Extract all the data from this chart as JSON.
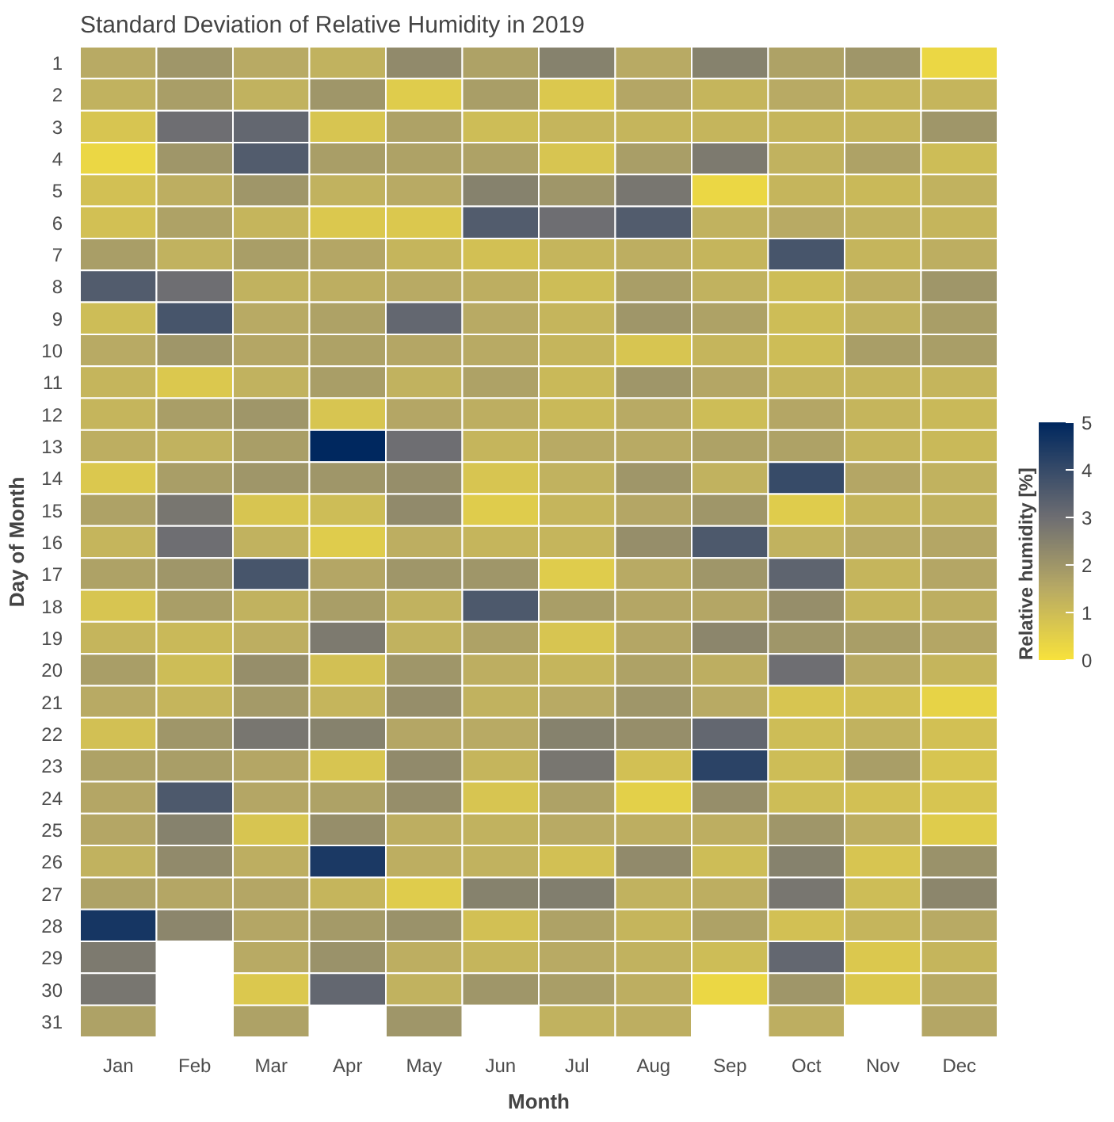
{
  "chart_data": {
    "type": "heatmap",
    "title": "Standard Deviation of Relative Humidity in 2019",
    "xlabel": "Month",
    "ylabel": "Day of Month",
    "clabel": "Relative humidity [%]",
    "categories": [
      "Jan",
      "Feb",
      "Mar",
      "Apr",
      "May",
      "Jun",
      "Jul",
      "Aug",
      "Sep",
      "Oct",
      "Nov",
      "Dec"
    ],
    "y_categories": [
      "1",
      "2",
      "3",
      "4",
      "5",
      "6",
      "7",
      "8",
      "9",
      "10",
      "11",
      "12",
      "13",
      "14",
      "15",
      "16",
      "17",
      "18",
      "19",
      "20",
      "21",
      "22",
      "23",
      "24",
      "25",
      "26",
      "27",
      "28",
      "29",
      "30",
      "31"
    ],
    "clim": [
      0,
      5
    ],
    "cticks": [
      0,
      1,
      2,
      3,
      4,
      5
    ],
    "grid": false,
    "cells": [
      [
        1.5,
        2,
        1.5,
        1.3,
        2.3,
        1.7,
        2.5,
        1.5,
        2.5,
        1.7,
        2,
        0.3
      ],
      [
        1.3,
        1.8,
        1.3,
        2,
        0.6,
        1.8,
        0.7,
        1.6,
        1.2,
        1.5,
        1.2,
        1.2
      ],
      [
        0.8,
        3,
        3.2,
        0.8,
        1.7,
        1,
        1.2,
        1.2,
        1.2,
        1.2,
        1.2,
        2
      ],
      [
        0.3,
        2,
        3.5,
        1.8,
        1.7,
        1.7,
        0.8,
        1.8,
        2.7,
        1.3,
        1.7,
        1
      ],
      [
        0.9,
        1.4,
        2,
        1.3,
        1.5,
        2.5,
        2,
        2.8,
        0.3,
        1.2,
        1.1,
        1.3
      ],
      [
        0.9,
        1.7,
        1.2,
        0.7,
        0.7,
        3.5,
        3,
        3.5,
        1.3,
        1.5,
        1.3,
        1.2
      ],
      [
        1.8,
        1.3,
        1.8,
        1.6,
        1.2,
        0.9,
        1.2,
        1.4,
        1.2,
        3.7,
        1.2,
        1.4
      ],
      [
        3.5,
        3,
        1.3,
        1.4,
        1.5,
        1.4,
        1,
        1.8,
        1.3,
        1,
        1.4,
        2
      ],
      [
        1,
        3.7,
        1.5,
        1.7,
        3.2,
        1.5,
        1.2,
        2,
        1.7,
        1,
        1.3,
        1.8
      ],
      [
        1.5,
        2,
        1.6,
        1.7,
        1.6,
        1.5,
        1.2,
        0.8,
        1.2,
        1,
        1.8,
        1.8
      ],
      [
        1.2,
        0.7,
        1.3,
        1.8,
        1.3,
        1.7,
        1.1,
        2,
        1.6,
        1.2,
        1.2,
        1.2
      ],
      [
        1.2,
        1.8,
        2,
        0.8,
        1.6,
        1.4,
        1.1,
        1.5,
        1,
        1.6,
        1.2,
        1.1
      ],
      [
        1.4,
        1.3,
        1.8,
        5,
        3,
        1.2,
        1.5,
        1.5,
        1.7,
        1.7,
        1.2,
        1.1
      ],
      [
        0.7,
        1.8,
        2,
        2,
        2.2,
        0.8,
        1.3,
        2,
        1.3,
        4,
        1.6,
        1.3
      ],
      [
        1.7,
        2.8,
        0.8,
        1,
        2.3,
        0.6,
        1.2,
        1.6,
        2,
        0.6,
        1.2,
        1.3
      ],
      [
        1.2,
        3,
        1.3,
        0.6,
        1.4,
        1.2,
        1.2,
        2.2,
        3.6,
        1.3,
        1.5,
        1.6
      ],
      [
        1.7,
        2,
        3.7,
        1.6,
        2,
        2,
        0.6,
        1.5,
        2,
        3.3,
        1.2,
        1.6
      ],
      [
        0.8,
        1.8,
        1.3,
        1.8,
        1.3,
        3.6,
        1.8,
        1.6,
        1.6,
        2.2,
        1.2,
        1.4
      ],
      [
        1.2,
        1.1,
        1.4,
        2.7,
        1.3,
        1.7,
        0.8,
        1.6,
        2.4,
        2,
        1.8,
        1.6
      ],
      [
        1.8,
        1,
        2.2,
        0.9,
        2,
        1.4,
        1.2,
        1.7,
        1.4,
        3,
        1.5,
        1.2
      ],
      [
        1.5,
        1.2,
        1.9,
        1.2,
        2.2,
        1.3,
        1.5,
        2,
        1.5,
        0.8,
        0.9,
        0.4
      ],
      [
        0.9,
        2,
        2.8,
        2.5,
        1.6,
        1.5,
        2.5,
        2.2,
        3.2,
        1,
        1.3,
        0.9
      ],
      [
        1.7,
        1.8,
        1.6,
        0.8,
        2.3,
        1.2,
        2.8,
        0.9,
        4.2,
        1,
        1.8,
        0.8
      ],
      [
        1.6,
        3.6,
        1.6,
        1.7,
        2.2,
        0.8,
        1.7,
        0.5,
        2.2,
        1,
        0.9,
        0.8
      ],
      [
        1.6,
        2.5,
        0.8,
        2.2,
        1.4,
        1.3,
        1.5,
        1.4,
        1.4,
        2,
        1.4,
        0.6
      ],
      [
        1.3,
        2.3,
        1.4,
        4.5,
        1.4,
        1.3,
        0.9,
        2.3,
        1,
        2.5,
        0.8,
        2.1
      ],
      [
        1.7,
        1.6,
        1.6,
        1.2,
        0.6,
        2.5,
        2.6,
        1.3,
        1.4,
        2.8,
        1,
        2.4
      ],
      [
        4.6,
        2.4,
        1.6,
        1.9,
        2.1,
        0.9,
        1.7,
        1.2,
        1.7,
        0.9,
        1.2,
        1.5
      ],
      [
        2.7,
        null,
        1.5,
        2.1,
        1.4,
        1.2,
        1.5,
        1.3,
        1,
        3.2,
        0.7,
        1.2
      ],
      [
        2.8,
        null,
        0.7,
        3.2,
        1.3,
        2,
        1.8,
        1.4,
        0.3,
        2,
        0.7,
        1.5
      ],
      [
        1.7,
        null,
        1.7,
        null,
        2,
        null,
        1.3,
        1.4,
        null,
        1.4,
        null,
        1.6
      ]
    ]
  }
}
